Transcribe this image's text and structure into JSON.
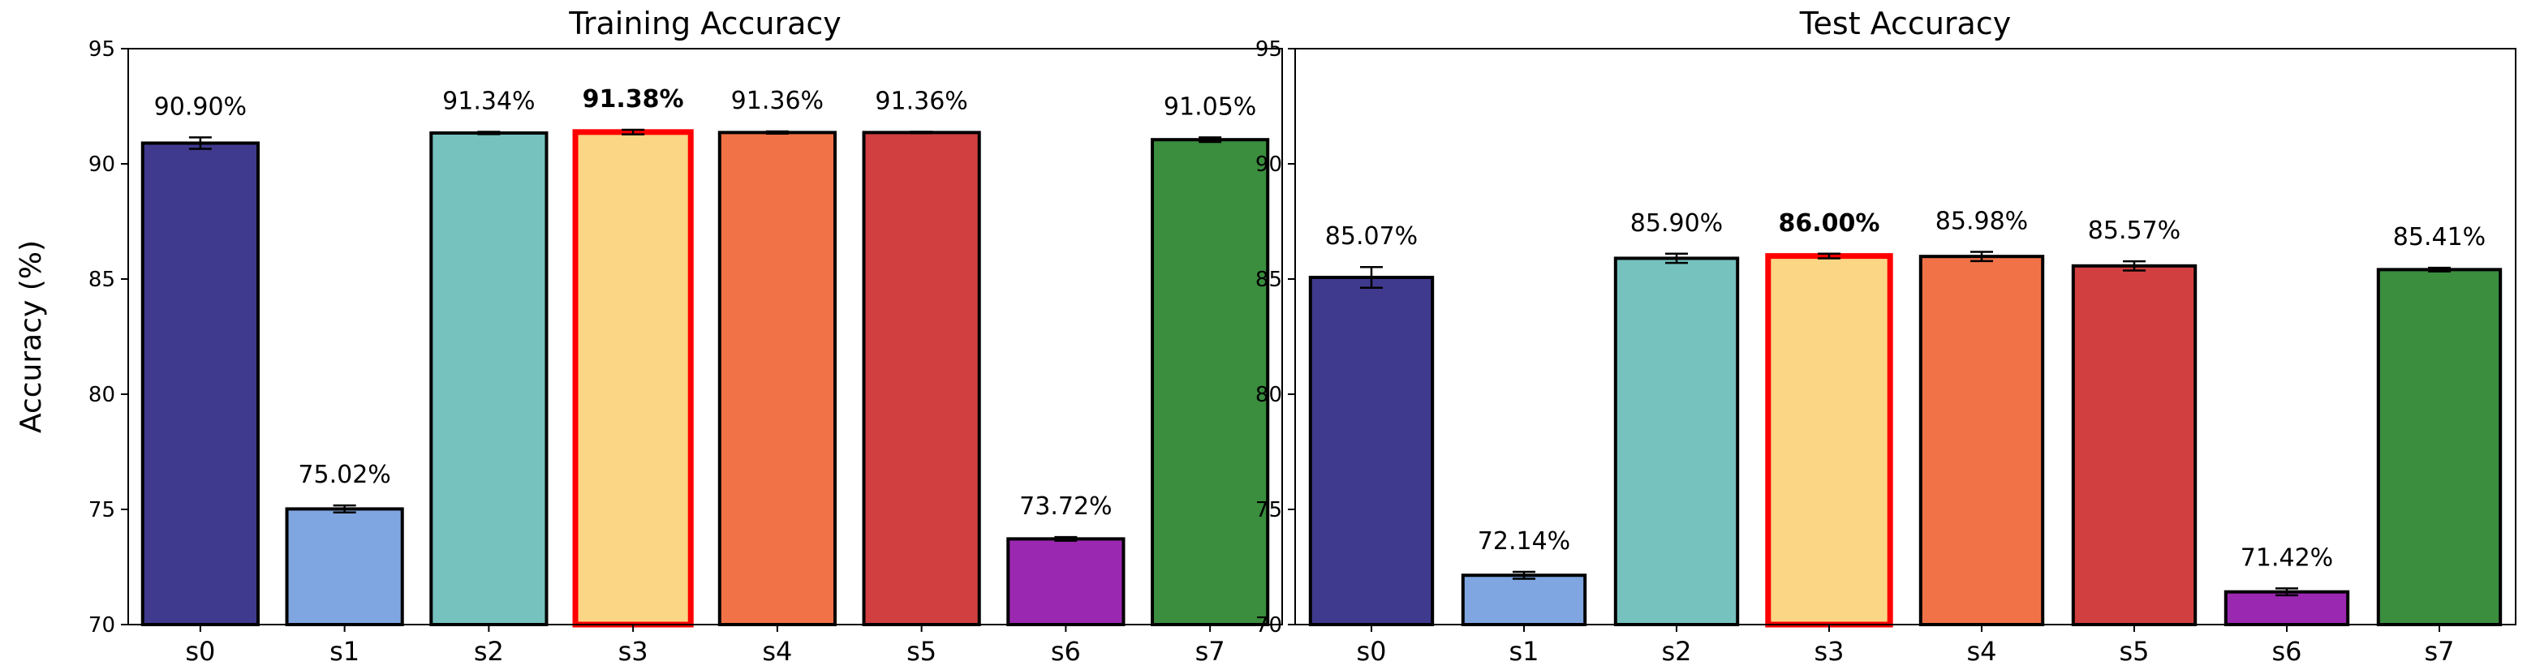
{
  "chart_data": [
    {
      "type": "bar",
      "title": "Training Accuracy",
      "xlabel": "",
      "ylabel": "Accuracy (%)",
      "ylim": [
        70,
        95
      ],
      "yticks": [
        "70",
        "75",
        "80",
        "85",
        "90",
        "95"
      ],
      "categories": [
        "s0",
        "s1",
        "s2",
        "s3",
        "s4",
        "s5",
        "s6",
        "s7"
      ],
      "values": [
        90.9,
        75.02,
        91.34,
        91.38,
        91.36,
        91.36,
        73.72,
        91.05
      ],
      "errors": [
        0.25,
        0.15,
        0.05,
        0.1,
        0.05,
        0.03,
        0.08,
        0.1
      ],
      "labels": [
        "90.90%",
        "75.02%",
        "91.34%",
        "91.38%",
        "91.36%",
        "91.36%",
        "73.72%",
        "91.05%"
      ],
      "highlight_index": 3,
      "highlight_color": "#ff0000",
      "colors": [
        "#3f3a8e",
        "#7fa6e0",
        "#75c2be",
        "#fad685",
        "#f27247",
        "#d13f40",
        "#9b28b1",
        "#3a8e3e"
      ],
      "grid": false
    },
    {
      "type": "bar",
      "title": "Test Accuracy",
      "xlabel": "",
      "ylabel": "",
      "ylim": [
        70,
        95
      ],
      "yticks": [
        "70",
        "75",
        "80",
        "85",
        "90",
        "95"
      ],
      "categories": [
        "s0",
        "s1",
        "s2",
        "s3",
        "s4",
        "s5",
        "s6",
        "s7"
      ],
      "values": [
        85.07,
        72.14,
        85.9,
        86.0,
        85.98,
        85.57,
        71.42,
        85.41
      ],
      "errors": [
        0.45,
        0.15,
        0.2,
        0.1,
        0.2,
        0.2,
        0.15,
        0.08
      ],
      "labels": [
        "85.07%",
        "72.14%",
        "85.90%",
        "86.00%",
        "85.98%",
        "85.57%",
        "71.42%",
        "85.41%"
      ],
      "highlight_index": 3,
      "highlight_color": "#ff0000",
      "colors": [
        "#3f3a8e",
        "#7fa6e0",
        "#75c2be",
        "#fad685",
        "#f27247",
        "#d13f40",
        "#9b28b1",
        "#3a8e3e"
      ],
      "grid": false
    }
  ]
}
